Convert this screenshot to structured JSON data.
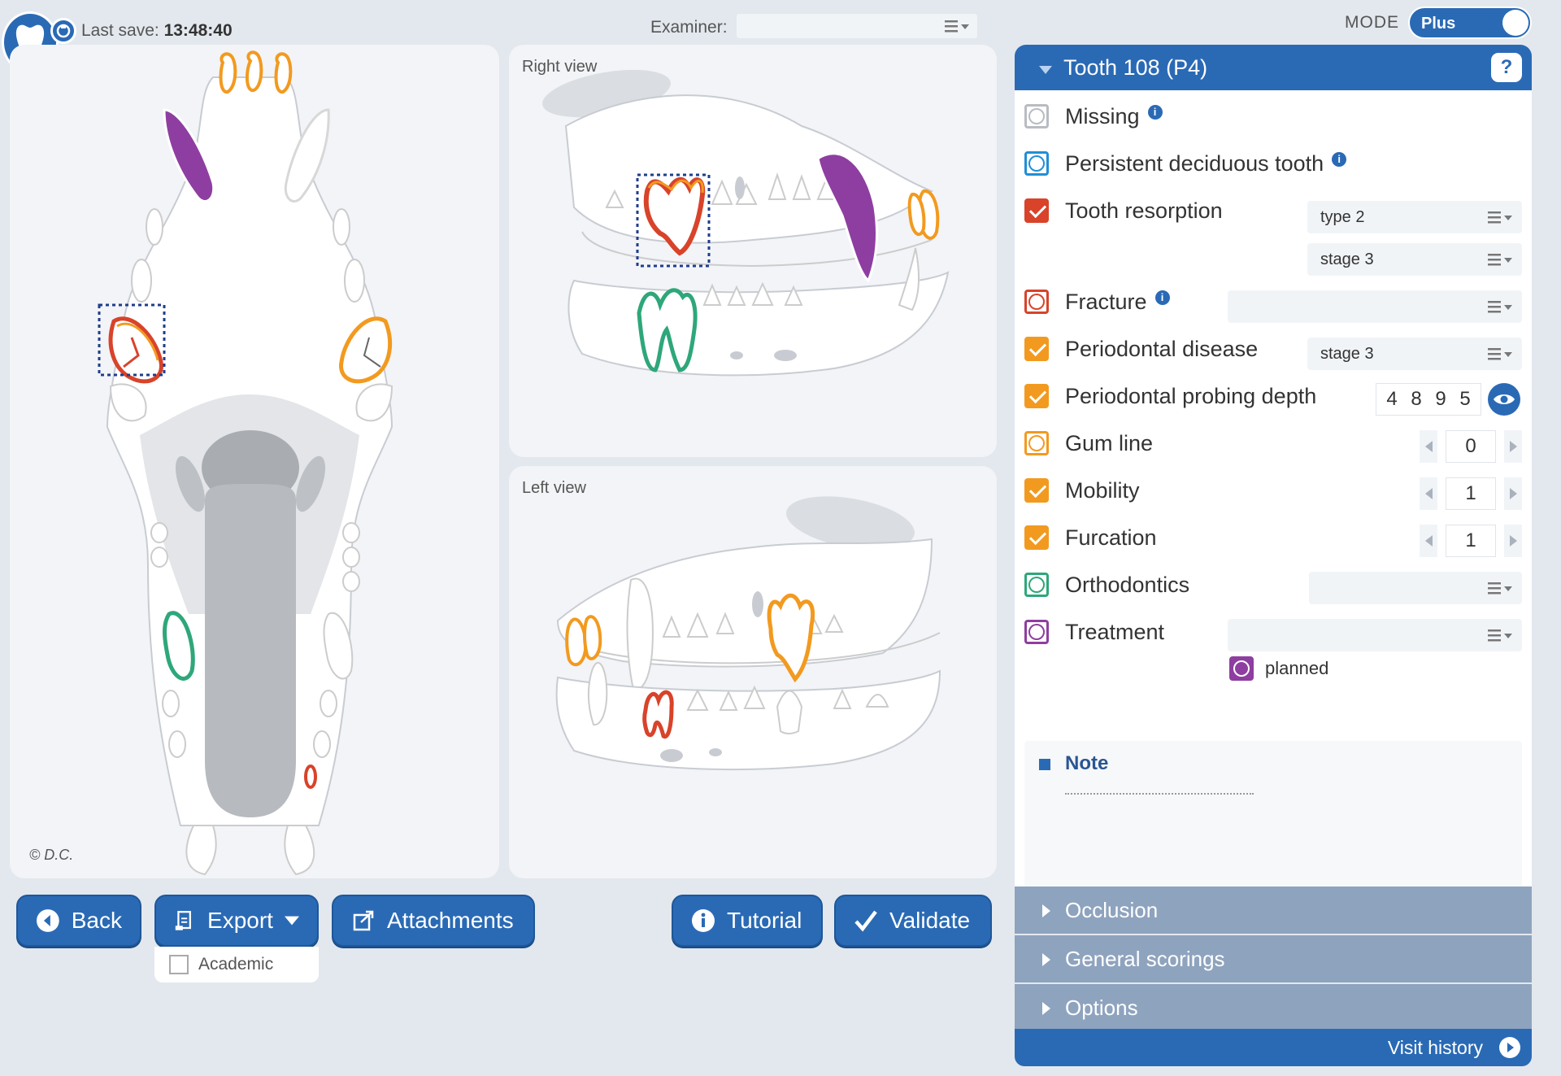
{
  "header": {
    "last_save_label": "Last save:",
    "last_save_time": "13:48:40",
    "examiner_label": "Examiner:",
    "examiner_value": "",
    "mode_label": "MODE",
    "mode_value": "Plus"
  },
  "views": {
    "right_label": "Right view",
    "left_label": "Left view",
    "copyright": "© D.C."
  },
  "colors": {
    "primary": "#2a6ab5",
    "orange": "#f29a1f",
    "red": "#d8432a",
    "purple": "#8e3ea0",
    "green": "#2ea77a",
    "dashed_selection": "#1f3d8c"
  },
  "buttons": {
    "back": "Back",
    "export": "Export",
    "export_option": "Academic",
    "attachments": "Attachments",
    "tutorial": "Tutorial",
    "validate": "Validate"
  },
  "tooth": {
    "title": "Tooth 108 (P4)",
    "help": "?",
    "findings": [
      {
        "label": "Missing",
        "color": "#b8bcc2",
        "checked": false
      },
      {
        "label": "Persistent deciduous tooth",
        "color": "#1f8fd6",
        "checked": false
      },
      {
        "label": "Tooth resorption",
        "color": "#d8432a",
        "checked": true,
        "dropdowns": [
          "type 2",
          "stage 3"
        ]
      },
      {
        "label": "Fracture",
        "color": "#d8432a",
        "checked": false,
        "dropdowns": [
          ""
        ]
      },
      {
        "label": "Periodontal disease",
        "color": "#f29a1f",
        "checked": true,
        "dropdowns": [
          "stage 3"
        ]
      },
      {
        "label": "Periodontal probing depth",
        "color": "#f29a1f",
        "checked": true,
        "probing": [
          "4",
          "8",
          "9",
          "5"
        ]
      },
      {
        "label": "Gum line",
        "color": "#f29a1f",
        "checked": false,
        "stepper": "0"
      },
      {
        "label": "Mobility",
        "color": "#f29a1f",
        "checked": true,
        "stepper": "1"
      },
      {
        "label": "Furcation",
        "color": "#f29a1f",
        "checked": true,
        "stepper": "1"
      },
      {
        "label": "Orthodontics",
        "color": "#2ea77a",
        "checked": false,
        "dropdowns": [
          ""
        ]
      },
      {
        "label": "Treatment",
        "color": "#8e3ea0",
        "checked": false,
        "dropdowns": [
          ""
        ]
      }
    ],
    "treatment_planned": "planned",
    "note_title": "Note"
  },
  "sections": [
    "Occlusion",
    "General scorings",
    "Options"
  ],
  "footer": {
    "visit_history": "Visit history"
  }
}
